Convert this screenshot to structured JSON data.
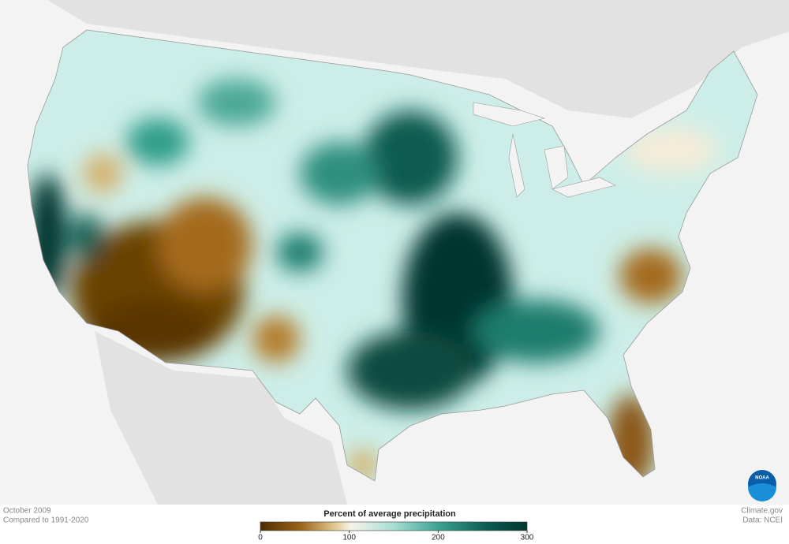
{
  "map": {
    "date": "October 2009",
    "baseline": "Compared to 1991-2020",
    "source": "Climate.gov",
    "credit": "Data: NCEI",
    "logo": "NOAA"
  },
  "legend": {
    "title": "Percent of average precipitation",
    "range": [
      0,
      300
    ],
    "ticks": [
      0,
      100,
      200,
      300
    ]
  }
}
